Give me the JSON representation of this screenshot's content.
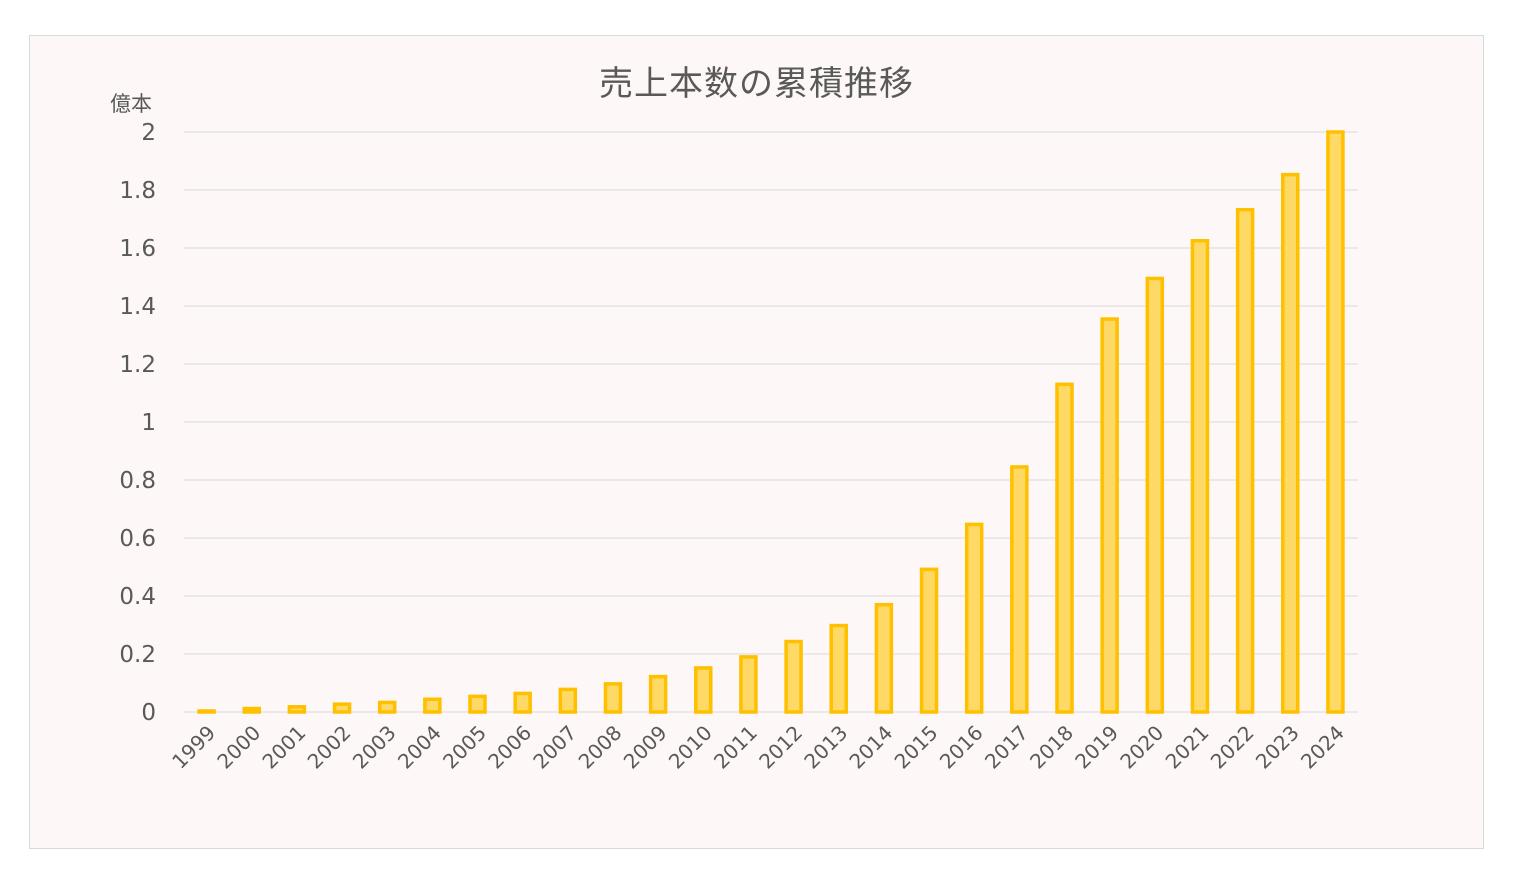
{
  "chart_data": {
    "type": "bar",
    "title": "売上本数の累積推移",
    "ylabel": "億本",
    "xlabel": "",
    "ylim": [
      0,
      2
    ],
    "yticks": [
      0,
      0.2,
      0.4,
      0.6,
      0.8,
      1,
      1.2,
      1.4,
      1.6,
      1.8,
      2
    ],
    "grid": true,
    "legend": "none",
    "categories": [
      "1999",
      "2000",
      "2001",
      "2002",
      "2003",
      "2004",
      "2005",
      "2006",
      "2007",
      "2008",
      "2009",
      "2010",
      "2011",
      "2012",
      "2013",
      "2014",
      "2015",
      "2016",
      "2017",
      "2018",
      "2019",
      "2020",
      "2021",
      "2022",
      "2023",
      "2024"
    ],
    "values": [
      0.003,
      0.012,
      0.018,
      0.027,
      0.033,
      0.044,
      0.054,
      0.064,
      0.078,
      0.097,
      0.122,
      0.152,
      0.19,
      0.243,
      0.298,
      0.37,
      0.492,
      0.647,
      0.845,
      1.13,
      1.355,
      1.495,
      1.625,
      1.732,
      1.853,
      2.0
    ],
    "colors": {
      "bar_fill": "#ffd966",
      "bar_edge": "#ffc000",
      "grid": "#d9d9d9",
      "text": "#595959",
      "background": "#fdf8f7"
    }
  }
}
